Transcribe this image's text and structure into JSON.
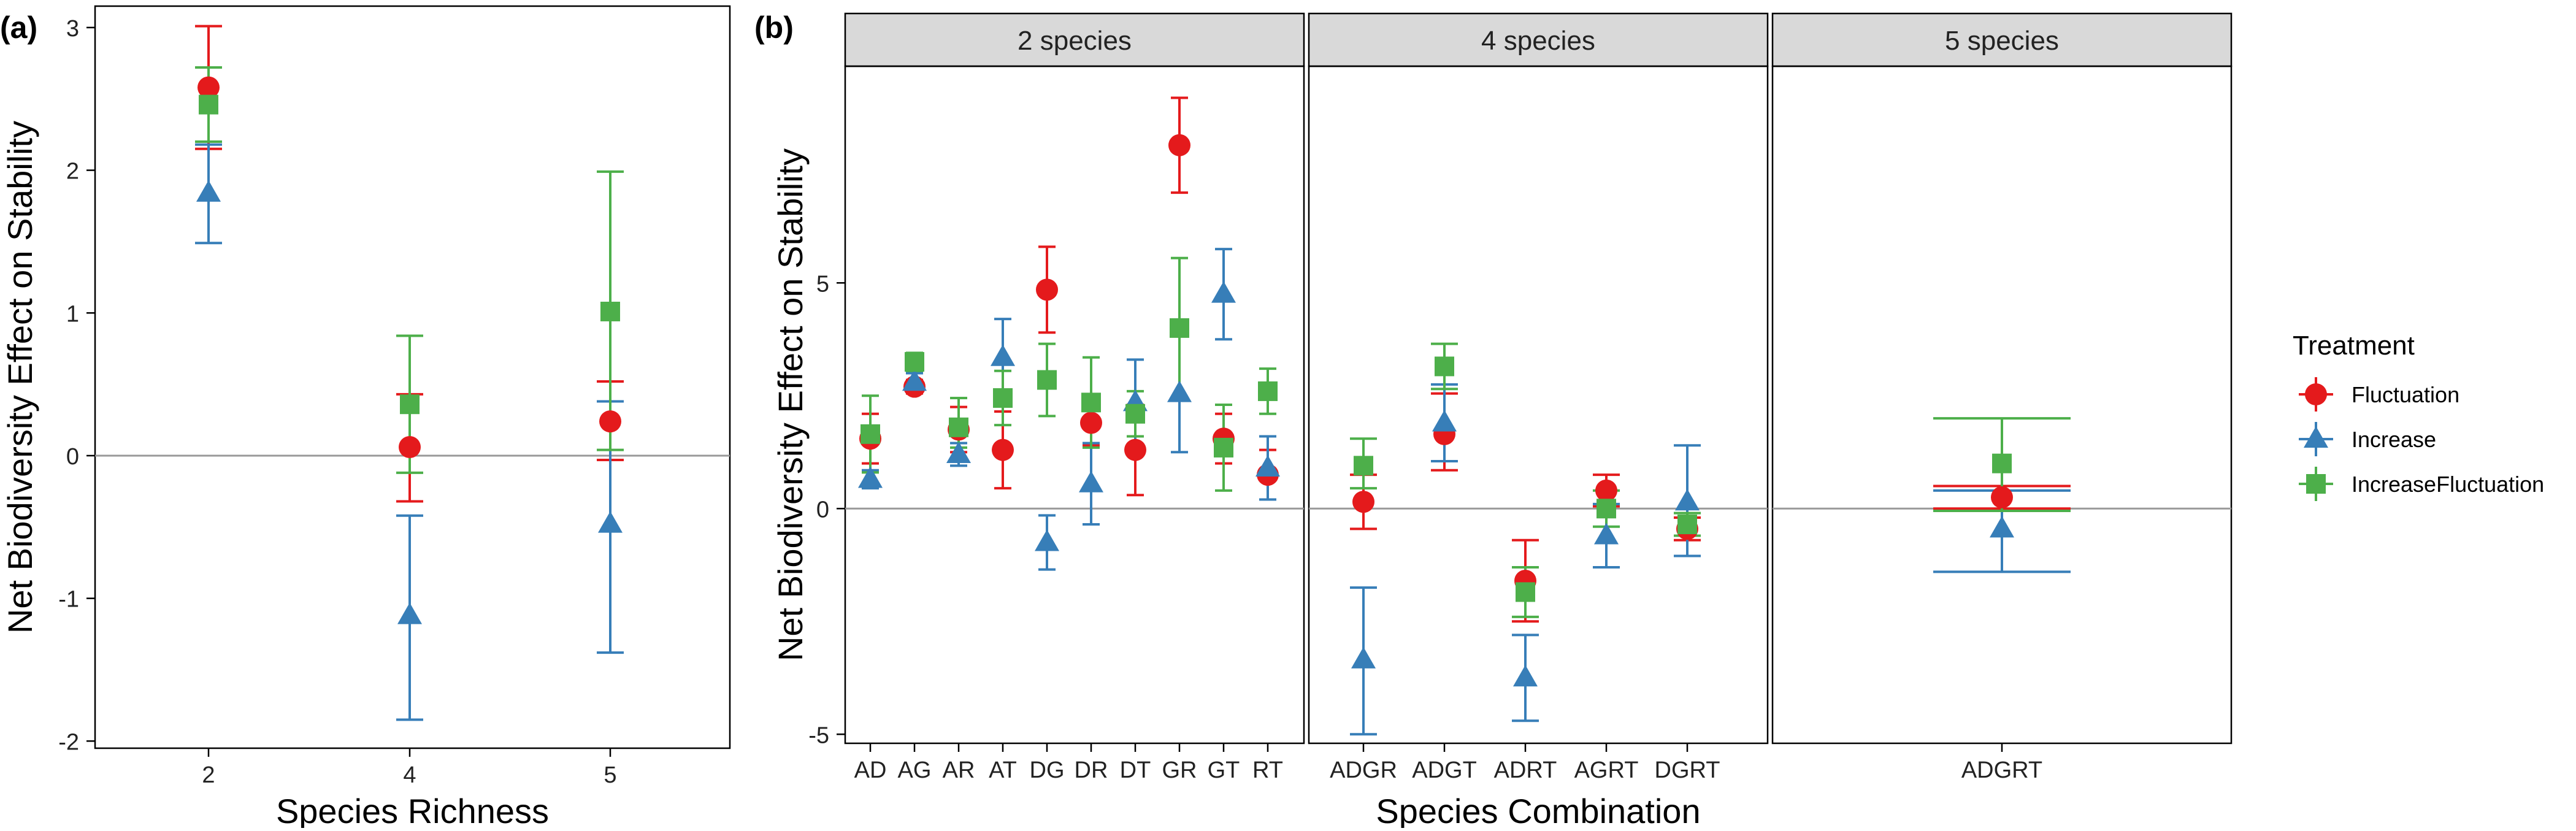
{
  "panel_labels": {
    "a": "(a)",
    "b": "(b)"
  },
  "colors": {
    "Fluctuation": "#E41A1C",
    "Increase": "#377EB8",
    "IncreaseFluctuation": "#4DAF4A",
    "zero_line": "#999999",
    "strip": "#D9D9D9"
  },
  "legend": {
    "title": "Treatment",
    "items": [
      {
        "name": "Fluctuation",
        "shape": "circle"
      },
      {
        "name": "Increase",
        "shape": "triangle"
      },
      {
        "name": "IncreaseFluctuation",
        "shape": "square"
      }
    ]
  },
  "chart_data": [
    {
      "type": "scatter",
      "panel": "(a)",
      "xlabel": "Species Richness",
      "ylabel": "Net Biodiversity Effect on Stability",
      "categories": [
        "2",
        "4",
        "5"
      ],
      "ylim": [
        -2.05,
        3.15
      ],
      "yticks": [
        -2,
        -1,
        0,
        1,
        2,
        3
      ],
      "hline": 0,
      "grid": false,
      "series": [
        {
          "name": "Fluctuation",
          "values": [
            2.58,
            0.06,
            0.24
          ],
          "lower": [
            2.15,
            -0.32,
            -0.03
          ],
          "upper": [
            3.01,
            0.43,
            0.52
          ]
        },
        {
          "name": "Increase",
          "values": [
            1.84,
            -1.12,
            -0.48
          ],
          "lower": [
            1.49,
            -1.85,
            -1.38
          ],
          "upper": [
            2.18,
            -0.42,
            0.38
          ]
        },
        {
          "name": "IncreaseFluctuation",
          "values": [
            2.46,
            0.36,
            1.01
          ],
          "lower": [
            2.2,
            -0.12,
            0.04
          ],
          "upper": [
            2.72,
            0.84,
            1.99
          ]
        }
      ]
    },
    {
      "type": "scatter",
      "panel": "(b)",
      "xlabel": "Species Combination",
      "ylabel": "Net Biodiversity Effect on Stability",
      "ylim": [
        -5.2,
        9.8
      ],
      "yticks": [
        -5,
        0,
        5
      ],
      "hline": 0,
      "grid": false,
      "facets": [
        {
          "strip": "2 species",
          "categories": [
            "AD",
            "AG",
            "AR",
            "AT",
            "DG",
            "DR",
            "DT",
            "GR",
            "GT",
            "RT"
          ],
          "series": [
            {
              "name": "Fluctuation",
              "values": [
                1.55,
                2.7,
                1.75,
                1.3,
                4.85,
                1.9,
                1.3,
                8.05,
                1.55,
                0.75
              ],
              "lower": [
                1.0,
                2.55,
                1.25,
                0.45,
                3.9,
                1.4,
                0.3,
                7.0,
                1.0,
                0.2
              ],
              "upper": [
                2.1,
                2.85,
                2.25,
                2.15,
                5.8,
                2.4,
                2.3,
                9.1,
                2.1,
                1.3
              ]
            },
            {
              "name": "Increase",
              "values": [
                0.65,
                2.8,
                1.2,
                3.35,
                -0.75,
                0.55,
                2.35,
                2.55,
                4.75,
                0.9
              ],
              "lower": [
                0.45,
                2.6,
                0.95,
                2.5,
                -1.35,
                -0.35,
                1.4,
                1.25,
                3.75,
                0.2
              ],
              "upper": [
                0.85,
                3.0,
                1.45,
                4.2,
                -0.15,
                1.45,
                3.3,
                3.85,
                5.75,
                1.6
              ]
            },
            {
              "name": "IncreaseFluctuation",
              "values": [
                1.65,
                3.25,
                1.8,
                2.45,
                2.85,
                2.35,
                2.1,
                4.0,
                1.35,
                2.6
              ],
              "lower": [
                0.8,
                3.05,
                1.35,
                1.85,
                2.05,
                1.35,
                1.6,
                2.45,
                0.4,
                2.1
              ],
              "upper": [
                2.5,
                3.45,
                2.45,
                3.05,
                3.65,
                3.35,
                2.6,
                5.55,
                2.3,
                3.1
              ]
            }
          ]
        },
        {
          "strip": "4 species",
          "categories": [
            "ADGR",
            "ADGT",
            "ADRT",
            "AGRT",
            "DGRT"
          ],
          "series": [
            {
              "name": "Fluctuation",
              "values": [
                0.15,
                1.65,
                -1.6,
                0.4,
                -0.45
              ],
              "lower": [
                -0.45,
                0.85,
                -2.5,
                0.05,
                -0.7
              ],
              "upper": [
                0.75,
                2.55,
                -0.7,
                0.75,
                -0.2
              ]
            },
            {
              "name": "Increase",
              "values": [
                -3.35,
                1.9,
                -3.75,
                -0.6,
                0.15
              ],
              "lower": [
                -5.0,
                1.05,
                -4.7,
                -1.3,
                -1.05
              ],
              "upper": [
                -1.75,
                2.75,
                -2.8,
                0.1,
                1.4
              ]
            },
            {
              "name": "IncreaseFluctuation",
              "values": [
                0.95,
                3.15,
                -1.85,
                0.0,
                -0.35
              ],
              "lower": [
                0.45,
                2.65,
                -2.4,
                -0.4,
                -0.6
              ],
              "upper": [
                1.55,
                3.65,
                -1.3,
                0.4,
                -0.1
              ]
            }
          ]
        },
        {
          "strip": "5 species",
          "categories": [
            "ADGRT"
          ],
          "series": [
            {
              "name": "Fluctuation",
              "values": [
                0.25
              ],
              "lower": [
                0.0
              ],
              "upper": [
                0.5
              ]
            },
            {
              "name": "Increase",
              "values": [
                -0.45
              ],
              "lower": [
                -1.4
              ],
              "upper": [
                0.4
              ]
            },
            {
              "name": "IncreaseFluctuation",
              "values": [
                1.0
              ],
              "lower": [
                -0.05
              ],
              "upper": [
                2.0
              ]
            }
          ]
        }
      ]
    }
  ]
}
